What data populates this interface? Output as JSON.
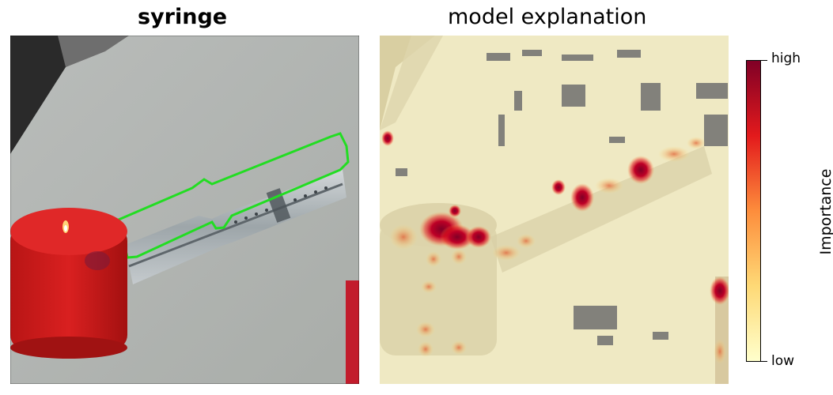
{
  "left_panel": {
    "title": "syringe"
  },
  "right_panel": {
    "title": "model explanation"
  },
  "colorbar": {
    "label": "Importance",
    "high_label": "high",
    "low_label": "low",
    "colors": [
      "#ffffcc",
      "#fed976",
      "#fd8d3c",
      "#e31a1c",
      "#800026"
    ]
  },
  "colors": {
    "outline": "#22dd22",
    "candle": "#d01c1c",
    "table": "#b4b7b4"
  }
}
